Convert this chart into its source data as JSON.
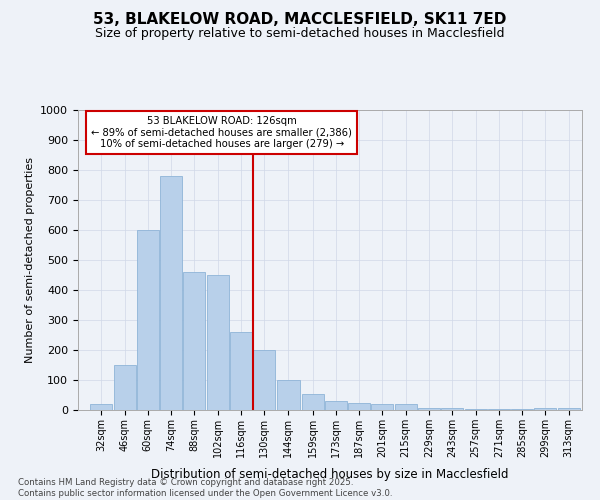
{
  "title": "53, BLAKELOW ROAD, MACCLESFIELD, SK11 7ED",
  "subtitle": "Size of property relative to semi-detached houses in Macclesfield",
  "xlabel": "Distribution of semi-detached houses by size in Macclesfield",
  "ylabel": "Number of semi-detached properties",
  "annotation_line1": "53 BLAKELOW ROAD: 126sqm",
  "annotation_line2": "← 89% of semi-detached houses are smaller (2,386)",
  "annotation_line3": "10% of semi-detached houses are larger (279) →",
  "footer_line1": "Contains HM Land Registry data © Crown copyright and database right 2025.",
  "footer_line2": "Contains public sector information licensed under the Open Government Licence v3.0.",
  "bar_color": "#b8d0ea",
  "bar_edge_color": "#8fb4d8",
  "vline_color": "#cc0000",
  "vline_x": 130,
  "annotation_box_color": "#ffffff",
  "annotation_box_edge": "#cc0000",
  "background_color": "#eef2f8",
  "categories": [
    "32sqm",
    "46sqm",
    "60sqm",
    "74sqm",
    "88sqm",
    "102sqm",
    "116sqm",
    "130sqm",
    "144sqm",
    "159sqm",
    "173sqm",
    "187sqm",
    "201sqm",
    "215sqm",
    "229sqm",
    "243sqm",
    "257sqm",
    "271sqm",
    "285sqm",
    "299sqm",
    "313sqm"
  ],
  "bar_left_edges": [
    32,
    46,
    60,
    74,
    88,
    102,
    116,
    130,
    144,
    159,
    173,
    187,
    201,
    215,
    229,
    243,
    257,
    271,
    285,
    299,
    313
  ],
  "bar_widths": [
    14,
    14,
    14,
    14,
    14,
    14,
    14,
    14,
    15,
    14,
    14,
    14,
    14,
    14,
    14,
    14,
    14,
    14,
    14,
    14,
    14
  ],
  "values": [
    20,
    150,
    600,
    780,
    460,
    450,
    260,
    200,
    100,
    55,
    30,
    25,
    20,
    20,
    8,
    8,
    5,
    5,
    3,
    8,
    8
  ],
  "ylim": [
    0,
    1000
  ],
  "yticks": [
    0,
    100,
    200,
    300,
    400,
    500,
    600,
    700,
    800,
    900,
    1000
  ],
  "grid_color": "#d0d8e8",
  "title_fontsize": 11,
  "subtitle_fontsize": 9
}
